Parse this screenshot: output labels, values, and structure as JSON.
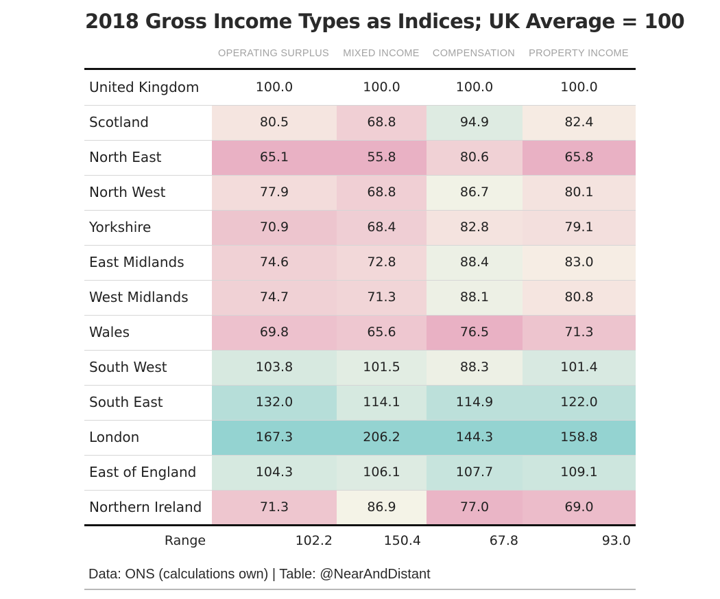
{
  "title": "2018 Gross Income Types as Indices; UK Average = 100",
  "source": "Data: ONS (calculations own) | Table: @NearAndDistant",
  "colors": {
    "low": "#e9b1c4",
    "mid": "#f8f4e8",
    "high": "#94d3d1"
  },
  "chart_data": {
    "type": "table",
    "columns": [
      "OPERATING SURPLUS",
      "MIXED INCOME",
      "COMPENSATION",
      "PROPERTY INCOME"
    ],
    "rows": [
      {
        "region": "United Kingdom",
        "values": [
          "100.0",
          "100.0",
          "100.0",
          "100.0"
        ],
        "shaded": false
      },
      {
        "region": "Scotland",
        "values": [
          "80.5",
          "68.8",
          "94.9",
          "82.4"
        ],
        "shaded": true
      },
      {
        "region": "North East",
        "values": [
          "65.1",
          "55.8",
          "80.6",
          "65.8"
        ],
        "shaded": true
      },
      {
        "region": "North West",
        "values": [
          "77.9",
          "68.8",
          "86.7",
          "80.1"
        ],
        "shaded": true
      },
      {
        "region": "Yorkshire",
        "values": [
          "70.9",
          "68.4",
          "82.8",
          "79.1"
        ],
        "shaded": true
      },
      {
        "region": "East Midlands",
        "values": [
          "74.6",
          "72.8",
          "88.4",
          "83.0"
        ],
        "shaded": true
      },
      {
        "region": "West Midlands",
        "values": [
          "74.7",
          "71.3",
          "88.1",
          "80.8"
        ],
        "shaded": true
      },
      {
        "region": "Wales",
        "values": [
          "69.8",
          "65.6",
          "76.5",
          "71.3"
        ],
        "shaded": true
      },
      {
        "region": "South West",
        "values": [
          "103.8",
          "101.5",
          "88.3",
          "101.4"
        ],
        "shaded": true
      },
      {
        "region": "South East",
        "values": [
          "132.0",
          "114.1",
          "114.9",
          "122.0"
        ],
        "shaded": true
      },
      {
        "region": "London",
        "values": [
          "167.3",
          "206.2",
          "144.3",
          "158.8"
        ],
        "shaded": true
      },
      {
        "region": "East of England",
        "values": [
          "104.3",
          "106.1",
          "107.7",
          "109.1"
        ],
        "shaded": true
      },
      {
        "region": "Northern Ireland",
        "values": [
          "71.3",
          "86.9",
          "77.0",
          "69.0"
        ],
        "shaded": true
      }
    ],
    "range": {
      "label": "Range",
      "values": [
        "102.2",
        "150.4",
        "67.8",
        "93.0"
      ]
    }
  }
}
